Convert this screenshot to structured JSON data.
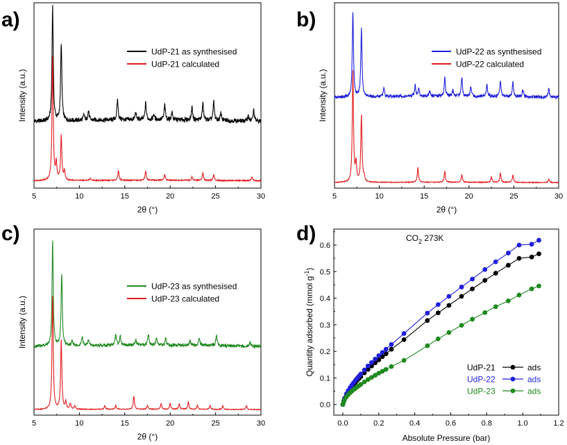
{
  "chart_data": [
    {
      "type": "line",
      "panel_label": "a)",
      "xlabel": "2θ (°)",
      "ylabel": "Intensity (a.u.)",
      "xlim": [
        5,
        30
      ],
      "xticks": [
        "5",
        "10",
        "15",
        "20",
        "25",
        "30"
      ],
      "legend": "top-right",
      "series": [
        {
          "name": "UdP-21 as synthesised",
          "color": "#000000",
          "baseline": 0.36,
          "noise": 0.012,
          "peaks": [
            [
              7.05,
              0.62
            ],
            [
              8.0,
              0.42
            ],
            [
              10.5,
              0.03
            ],
            [
              11.0,
              0.05
            ],
            [
              14.2,
              0.11
            ],
            [
              16.2,
              0.04
            ],
            [
              17.3,
              0.09
            ],
            [
              18.2,
              0.03
            ],
            [
              19.4,
              0.08
            ],
            [
              20.2,
              0.04
            ],
            [
              22.4,
              0.07
            ],
            [
              23.6,
              0.09
            ],
            [
              24.8,
              0.1
            ],
            [
              25.6,
              0.04
            ],
            [
              28.6,
              0.03
            ],
            [
              29.2,
              0.06
            ]
          ]
        },
        {
          "name": "UdP-21 calculated",
          "color": "#e31a1c",
          "baseline": 0.04,
          "noise": 0.003,
          "peaks": [
            [
              7.05,
              0.67
            ],
            [
              7.45,
              0.09
            ],
            [
              8.0,
              0.24
            ],
            [
              8.35,
              0.05
            ],
            [
              11.2,
              0.01
            ],
            [
              14.3,
              0.05
            ],
            [
              17.3,
              0.05
            ],
            [
              19.4,
              0.03
            ],
            [
              22.4,
              0.02
            ],
            [
              23.6,
              0.04
            ],
            [
              24.8,
              0.03
            ],
            [
              29.0,
              0.02
            ]
          ]
        }
      ]
    },
    {
      "type": "line",
      "panel_label": "b)",
      "xlabel": "2θ (°)",
      "ylabel": "Intensity (a.u.)",
      "xlim": [
        5,
        30
      ],
      "xticks": [
        "5",
        "10",
        "15",
        "20",
        "25",
        "30"
      ],
      "legend": "top-right",
      "series": [
        {
          "name": "UdP-22 as synthesised",
          "color": "#1f1fdc",
          "baseline": 0.49,
          "noise": 0.008,
          "peaks": [
            [
              7.05,
              0.46
            ],
            [
              8.0,
              0.37
            ],
            [
              10.5,
              0.05
            ],
            [
              14.0,
              0.06
            ],
            [
              14.4,
              0.04
            ],
            [
              15.6,
              0.03
            ],
            [
              17.3,
              0.1
            ],
            [
              18.2,
              0.03
            ],
            [
              19.2,
              0.1
            ],
            [
              20.2,
              0.05
            ],
            [
              22.0,
              0.06
            ],
            [
              23.5,
              0.09
            ],
            [
              24.9,
              0.08
            ],
            [
              26.0,
              0.04
            ],
            [
              28.9,
              0.05
            ]
          ]
        },
        {
          "name": "UdP-22 calculated",
          "color": "#e31a1c",
          "baseline": 0.03,
          "noise": 0.002,
          "peaks": [
            [
              7.05,
              0.6
            ],
            [
              7.4,
              0.1
            ],
            [
              8.0,
              0.36
            ],
            [
              8.3,
              0.03
            ],
            [
              14.3,
              0.08
            ],
            [
              17.3,
              0.06
            ],
            [
              19.2,
              0.04
            ],
            [
              22.5,
              0.03
            ],
            [
              23.5,
              0.05
            ],
            [
              24.9,
              0.04
            ],
            [
              28.9,
              0.02
            ]
          ]
        }
      ]
    },
    {
      "type": "line",
      "panel_label": "c)",
      "xlabel": "2θ (°)",
      "ylabel": "Intensity (a.u.)",
      "xlim": [
        5,
        30
      ],
      "xticks": [
        "5",
        "10",
        "15",
        "20",
        "25",
        "30"
      ],
      "legend": "top-right",
      "series": [
        {
          "name": "UdP-23 as synthesised",
          "color": "#1f8a1f",
          "baseline": 0.37,
          "noise": 0.008,
          "peaks": [
            [
              7.05,
              0.56
            ],
            [
              8.05,
              0.39
            ],
            [
              9.2,
              0.03
            ],
            [
              10.3,
              0.05
            ],
            [
              11.0,
              0.03
            ],
            [
              14.0,
              0.06
            ],
            [
              14.5,
              0.05
            ],
            [
              16.2,
              0.03
            ],
            [
              17.6,
              0.06
            ],
            [
              18.5,
              0.04
            ],
            [
              19.5,
              0.04
            ],
            [
              22.2,
              0.03
            ],
            [
              23.2,
              0.04
            ],
            [
              25.1,
              0.06
            ],
            [
              28.8,
              0.02
            ]
          ]
        },
        {
          "name": "UdP-23 calculated",
          "color": "#e31a1c",
          "baseline": 0.03,
          "noise": 0.002,
          "peaks": [
            [
              7.05,
              0.61
            ],
            [
              8.0,
              0.37
            ],
            [
              8.5,
              0.04
            ],
            [
              9.0,
              0.03
            ],
            [
              9.5,
              0.02
            ],
            [
              12.8,
              0.02
            ],
            [
              14.0,
              0.02
            ],
            [
              16.0,
              0.07
            ],
            [
              17.5,
              0.02
            ],
            [
              19.0,
              0.03
            ],
            [
              20.0,
              0.03
            ],
            [
              21.0,
              0.03
            ],
            [
              22.0,
              0.04
            ],
            [
              23.0,
              0.02
            ],
            [
              24.4,
              0.02
            ],
            [
              25.8,
              0.02
            ],
            [
              28.4,
              0.02
            ]
          ]
        }
      ]
    },
    {
      "type": "line",
      "panel_label": "d)",
      "title_main": "CO",
      "title_sub": "2",
      "title_rest": " 273K",
      "xlabel": "Absolute Pressure (bar)",
      "ylabel_main": "Quantity adsorbed (mmol g",
      "ylabel_sup": "-1",
      "ylabel_end": ")",
      "xlim": [
        -0.05,
        1.2
      ],
      "ylim": [
        -0.04,
        0.66
      ],
      "xticks": [
        0.0,
        0.2,
        0.4,
        0.6,
        0.8,
        1.0,
        1.2
      ],
      "xtick_labels": [
        "0.0",
        "0.2",
        "0.4",
        "0.6",
        "0.8",
        "1.0",
        "1.2"
      ],
      "yticks": [
        0.0,
        0.1,
        0.2,
        0.3,
        0.4,
        0.5,
        0.6
      ],
      "ytick_labels": [
        "0.0",
        "0.1",
        "0.2",
        "0.3",
        "0.4",
        "0.5",
        "0.6"
      ],
      "legend": "bottom-right",
      "legend_suffix": "ads",
      "series": [
        {
          "name": "UdP-21",
          "color": "#000000",
          "x": [
            0.0,
            0.005,
            0.01,
            0.02,
            0.03,
            0.04,
            0.05,
            0.06,
            0.07,
            0.08,
            0.09,
            0.1,
            0.12,
            0.14,
            0.16,
            0.18,
            0.2,
            0.22,
            0.24,
            0.27,
            0.34,
            0.47,
            0.53,
            0.59,
            0.66,
            0.72,
            0.79,
            0.85,
            0.92,
            0.98,
            1.05,
            1.09
          ],
          "y": [
            0.0,
            0.012,
            0.022,
            0.036,
            0.047,
            0.057,
            0.066,
            0.075,
            0.083,
            0.091,
            0.098,
            0.105,
            0.119,
            0.132,
            0.145,
            0.157,
            0.168,
            0.18,
            0.191,
            0.208,
            0.244,
            0.316,
            0.345,
            0.373,
            0.407,
            0.435,
            0.467,
            0.494,
            0.524,
            0.55,
            0.555,
            0.567
          ]
        },
        {
          "name": "UdP-22",
          "color": "#1f1fdc",
          "x": [
            0.0,
            0.005,
            0.01,
            0.02,
            0.03,
            0.04,
            0.05,
            0.06,
            0.07,
            0.08,
            0.09,
            0.1,
            0.12,
            0.14,
            0.16,
            0.18,
            0.2,
            0.22,
            0.24,
            0.27,
            0.34,
            0.47,
            0.53,
            0.59,
            0.66,
            0.72,
            0.79,
            0.85,
            0.92,
            0.98,
            1.05,
            1.09
          ],
          "y": [
            0.0,
            0.013,
            0.024,
            0.04,
            0.052,
            0.063,
            0.073,
            0.082,
            0.091,
            0.099,
            0.107,
            0.115,
            0.13,
            0.145,
            0.158,
            0.171,
            0.184,
            0.196,
            0.208,
            0.226,
            0.267,
            0.344,
            0.376,
            0.407,
            0.442,
            0.472,
            0.508,
            0.537,
            0.57,
            0.6,
            0.603,
            0.618
          ]
        },
        {
          "name": "UdP-23",
          "color": "#1f8a1f",
          "x": [
            0.0,
            0.005,
            0.01,
            0.02,
            0.03,
            0.04,
            0.05,
            0.06,
            0.07,
            0.08,
            0.09,
            0.1,
            0.12,
            0.14,
            0.16,
            0.18,
            0.2,
            0.22,
            0.24,
            0.27,
            0.34,
            0.47,
            0.53,
            0.59,
            0.66,
            0.72,
            0.79,
            0.85,
            0.92,
            0.98,
            1.05,
            1.09
          ],
          "y": [
            0.0,
            0.01,
            0.018,
            0.029,
            0.037,
            0.044,
            0.05,
            0.056,
            0.061,
            0.066,
            0.071,
            0.076,
            0.085,
            0.094,
            0.102,
            0.11,
            0.118,
            0.125,
            0.132,
            0.143,
            0.166,
            0.221,
            0.247,
            0.271,
            0.298,
            0.321,
            0.346,
            0.368,
            0.39,
            0.412,
            0.435,
            0.446
          ]
        }
      ]
    }
  ]
}
